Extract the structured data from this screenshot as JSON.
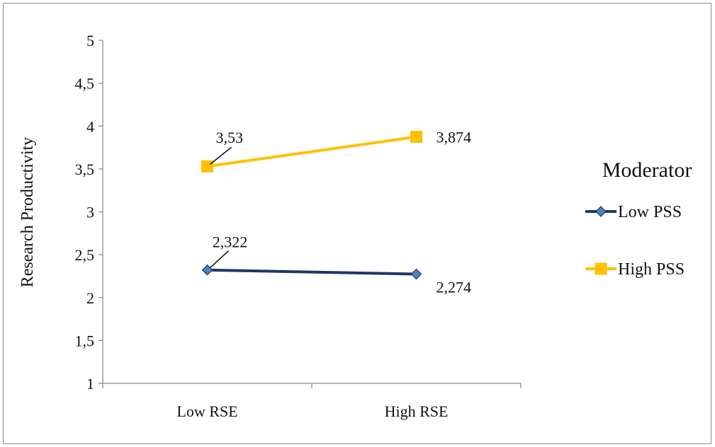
{
  "chart_data": {
    "type": "line",
    "categories": [
      "Low RSE",
      "High RSE"
    ],
    "ylabel": "Research Productivity",
    "xlabel": "",
    "ylim": [
      1,
      5
    ],
    "yticks": [
      "1",
      "1,5",
      "2",
      "2,5",
      "3",
      "3,5",
      "4",
      "4,5",
      "5"
    ],
    "yticks_values": [
      1,
      1.5,
      2,
      2.5,
      3,
      3.5,
      4,
      4.5,
      5
    ],
    "grid": false,
    "legend": {
      "title": "Moderator",
      "placement": "right"
    },
    "series": [
      {
        "name": "Low PSS",
        "values": [
          2.322,
          2.274
        ],
        "labels": [
          "2,322",
          "2,274"
        ],
        "color": "#1f3864",
        "marker": "diamond",
        "marker_fill": "#4f81bd"
      },
      {
        "name": "High PSS",
        "values": [
          3.53,
          3.874
        ],
        "labels": [
          "3,53",
          "3,874"
        ],
        "color": "#ffc000",
        "marker": "square",
        "marker_fill": "#ffc000"
      }
    ]
  }
}
